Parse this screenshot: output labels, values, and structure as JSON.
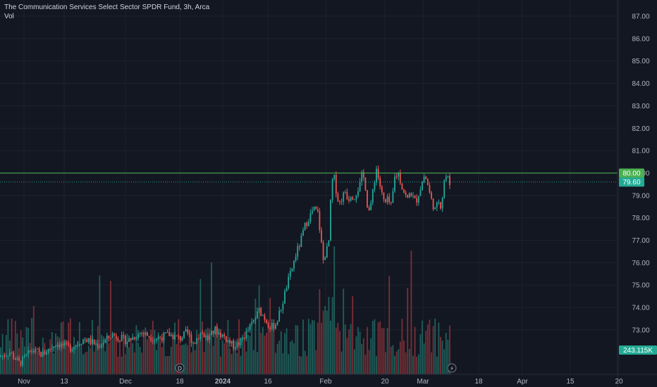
{
  "legend": {
    "title": "The Communication Services Select Sector SPDR Fund, 3h, Arca",
    "vol_label": "Vol"
  },
  "colors": {
    "background": "#131722",
    "grid": "#1e222d",
    "up": "#26a69a",
    "down": "#ef5350",
    "vol_up": "#1f5f5a",
    "vol_down": "#7a2f35",
    "hline": "#4caf50",
    "last_price": "#22ab94",
    "axis_text": "#b2b5be"
  },
  "chart_data": {
    "type": "candlestick",
    "title": "The Communication Services Select Sector SPDR Fund, 3h, Arca",
    "y_axis": {
      "ticks": [
        "87.00",
        "86.00",
        "85.00",
        "84.00",
        "83.00",
        "82.00",
        "81.00",
        "80.00",
        "79.00",
        "78.00",
        "77.00",
        "76.00",
        "75.00",
        "74.00",
        "73.00"
      ],
      "range": [
        72.4,
        87.5
      ]
    },
    "x_axis": {
      "ticks": [
        "Nov",
        "13",
        "Dec",
        "18",
        "2024",
        "16",
        "Feb",
        "20",
        "Mar",
        "18",
        "Apr",
        "15",
        "20"
      ],
      "bold": [
        "2024"
      ]
    },
    "horizontal_line": {
      "value": 80.0,
      "label": "80.00"
    },
    "last_price": {
      "value": 79.6,
      "label": "79.60"
    },
    "volume_label": "243.115K",
    "event_markers": [
      {
        "label": "D",
        "near": "18"
      },
      {
        "label": "⚡",
        "near": "Mar"
      }
    ],
    "price_path": [
      [
        0,
        71.8
      ],
      [
        14,
        72.0
      ],
      [
        28,
        71.5
      ],
      [
        45,
        72.1
      ],
      [
        60,
        71.9
      ],
      [
        80,
        72.4
      ],
      [
        100,
        72.2
      ],
      [
        120,
        72.6
      ],
      [
        140,
        72.3
      ],
      [
        160,
        72.8
      ],
      [
        180,
        72.5
      ],
      [
        200,
        72.9
      ],
      [
        220,
        72.6
      ],
      [
        240,
        72.8
      ],
      [
        255,
        72.6
      ],
      [
        265,
        72.9
      ],
      [
        275,
        72.4
      ],
      [
        285,
        72.9
      ],
      [
        295,
        72.6
      ],
      [
        305,
        73.0
      ],
      [
        318,
        72.7
      ],
      [
        330,
        72.3
      ],
      [
        340,
        72.4
      ],
      [
        350,
        72.9
      ],
      [
        360,
        73.4
      ],
      [
        368,
        73.9
      ],
      [
        376,
        73.5
      ],
      [
        384,
        73.1
      ],
      [
        392,
        73.3
      ],
      [
        400,
        74.1
      ],
      [
        407,
        75.0
      ],
      [
        414,
        75.7
      ],
      [
        420,
        76.4
      ],
      [
        426,
        76.9
      ],
      [
        432,
        77.6
      ],
      [
        438,
        78.0
      ],
      [
        445,
        78.4
      ],
      [
        451,
        78.2
      ],
      [
        455,
        77.1
      ],
      [
        459,
        76.0
      ],
      [
        462,
        76.5
      ],
      [
        466,
        76.7
      ],
      [
        470,
        79.3
      ],
      [
        473,
        80.0
      ],
      [
        477,
        79.2
      ],
      [
        481,
        78.6
      ],
      [
        485,
        78.9
      ],
      [
        490,
        79.2
      ],
      [
        494,
        78.8
      ],
      [
        498,
        79.1
      ],
      [
        502,
        78.9
      ],
      [
        506,
        79.2
      ],
      [
        510,
        79.4
      ],
      [
        514,
        80.0
      ],
      [
        518,
        79.5
      ],
      [
        521,
        78.6
      ],
      [
        525,
        78.2
      ],
      [
        529,
        79.3
      ],
      [
        534,
        80.2
      ],
      [
        538,
        79.6
      ],
      [
        542,
        79.0
      ],
      [
        546,
        78.6
      ],
      [
        550,
        78.8
      ],
      [
        555,
        78.5
      ],
      [
        560,
        79.8
      ],
      [
        565,
        80.0
      ],
      [
        570,
        79.4
      ],
      [
        574,
        79.1
      ],
      [
        578,
        78.8
      ],
      [
        582,
        79.2
      ],
      [
        586,
        78.9
      ],
      [
        590,
        78.7
      ],
      [
        594,
        79.1
      ],
      [
        598,
        79.5
      ],
      [
        602,
        79.9
      ],
      [
        606,
        79.6
      ],
      [
        610,
        79.0
      ],
      [
        614,
        78.6
      ],
      [
        618,
        78.3
      ],
      [
        622,
        78.8
      ],
      [
        626,
        78.5
      ],
      [
        630,
        79.7
      ],
      [
        634,
        79.9
      ],
      [
        638,
        79.5
      ],
      [
        640,
        79.6
      ]
    ]
  }
}
